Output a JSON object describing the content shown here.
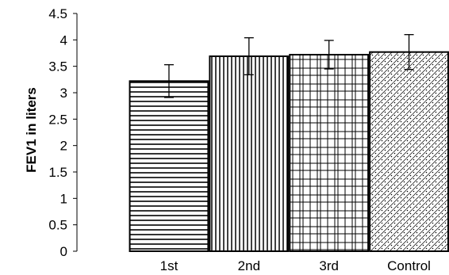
{
  "chart_data": {
    "type": "bar",
    "categories": [
      "1st",
      "2nd",
      "3rd",
      "Control"
    ],
    "values": [
      3.22,
      3.69,
      3.72,
      3.77
    ],
    "errors": [
      0.31,
      0.35,
      0.27,
      0.33
    ],
    "ylabel": "FEV1 in liters",
    "xlabel": "",
    "ylim": [
      0,
      4.5
    ],
    "yticks": [
      "0",
      "0.5",
      "1",
      "1.5",
      "2",
      "2.5",
      "3",
      "3.5",
      "4",
      "4.5"
    ],
    "fill_patterns": [
      "horizontal-lines",
      "vertical-lines",
      "grid-lines",
      "dots-and-diagonal-hatch"
    ],
    "grid": false,
    "legend": "none",
    "colors": {
      "bar_stroke": "#000000",
      "background": "#ffffff"
    }
  }
}
